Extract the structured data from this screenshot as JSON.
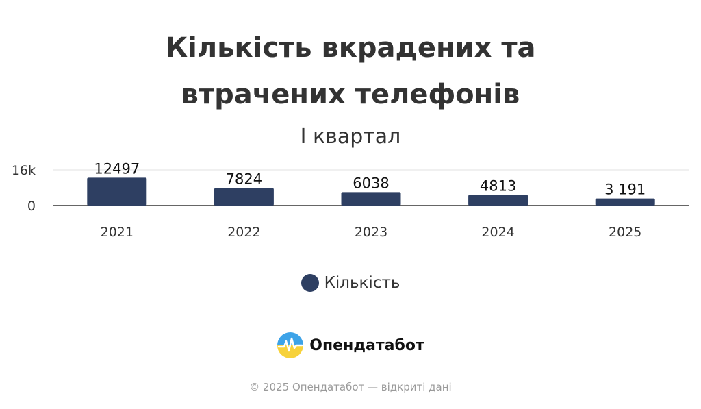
{
  "chart_data": {
    "type": "bar",
    "title": [
      "Кількість вкрадених та",
      "втрачених телефонів"
    ],
    "subtitle": "І квартал",
    "categories": [
      "2021",
      "2022",
      "2023",
      "2024",
      "2025"
    ],
    "series": [
      {
        "name": "Кількість",
        "values": [
          12497,
          7824,
          6038,
          4813,
          3191
        ],
        "data_labels": [
          "12497",
          "7824",
          "6038",
          "4813",
          "3 191"
        ],
        "color": "#2e3f62"
      }
    ],
    "y_ticks": [
      0,
      16000
    ],
    "y_tick_labels": [
      "0",
      "16k"
    ],
    "ylim": [
      0,
      16000
    ],
    "grid": true,
    "legend_position": "bottom-center"
  },
  "brand": {
    "name": "Опендатабот",
    "icon": "opendatabot-logo-icon"
  },
  "footer": {
    "text": "© 2025 Опендатабот — відкриті дані"
  }
}
